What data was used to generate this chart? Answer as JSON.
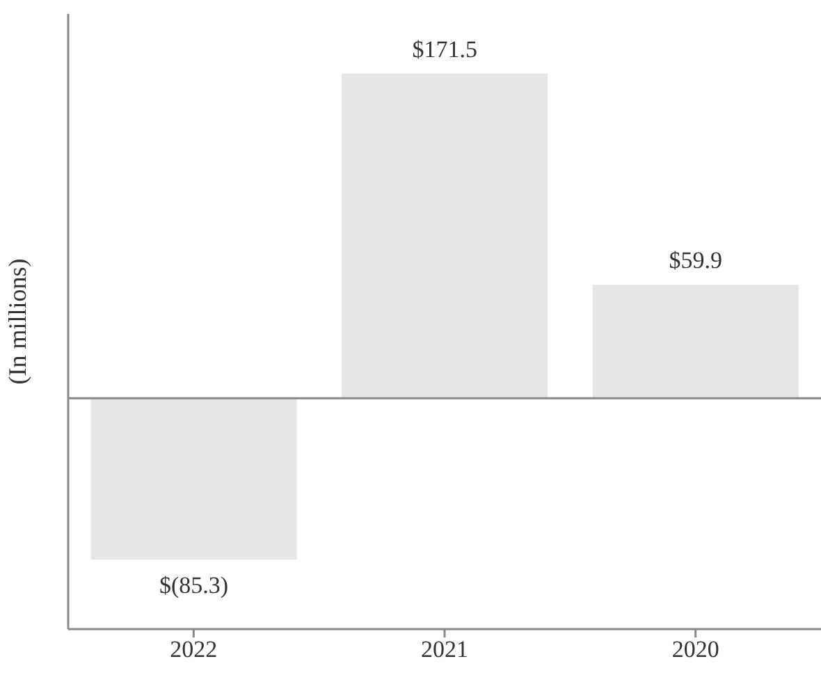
{
  "chart_data": {
    "type": "bar",
    "ylabel": "(In millions)",
    "categories": [
      "2022",
      "2021",
      "2020"
    ],
    "values": [
      -85.3,
      171.5,
      59.9
    ],
    "value_labels": [
      "$(85.3)",
      "$171.5",
      "$59.9"
    ],
    "color": "#e5e6e8",
    "ylim": [
      -122,
      203
    ],
    "ref_lines": [
      {
        "axis": "y",
        "value": 0,
        "color": "#888888"
      }
    ]
  }
}
